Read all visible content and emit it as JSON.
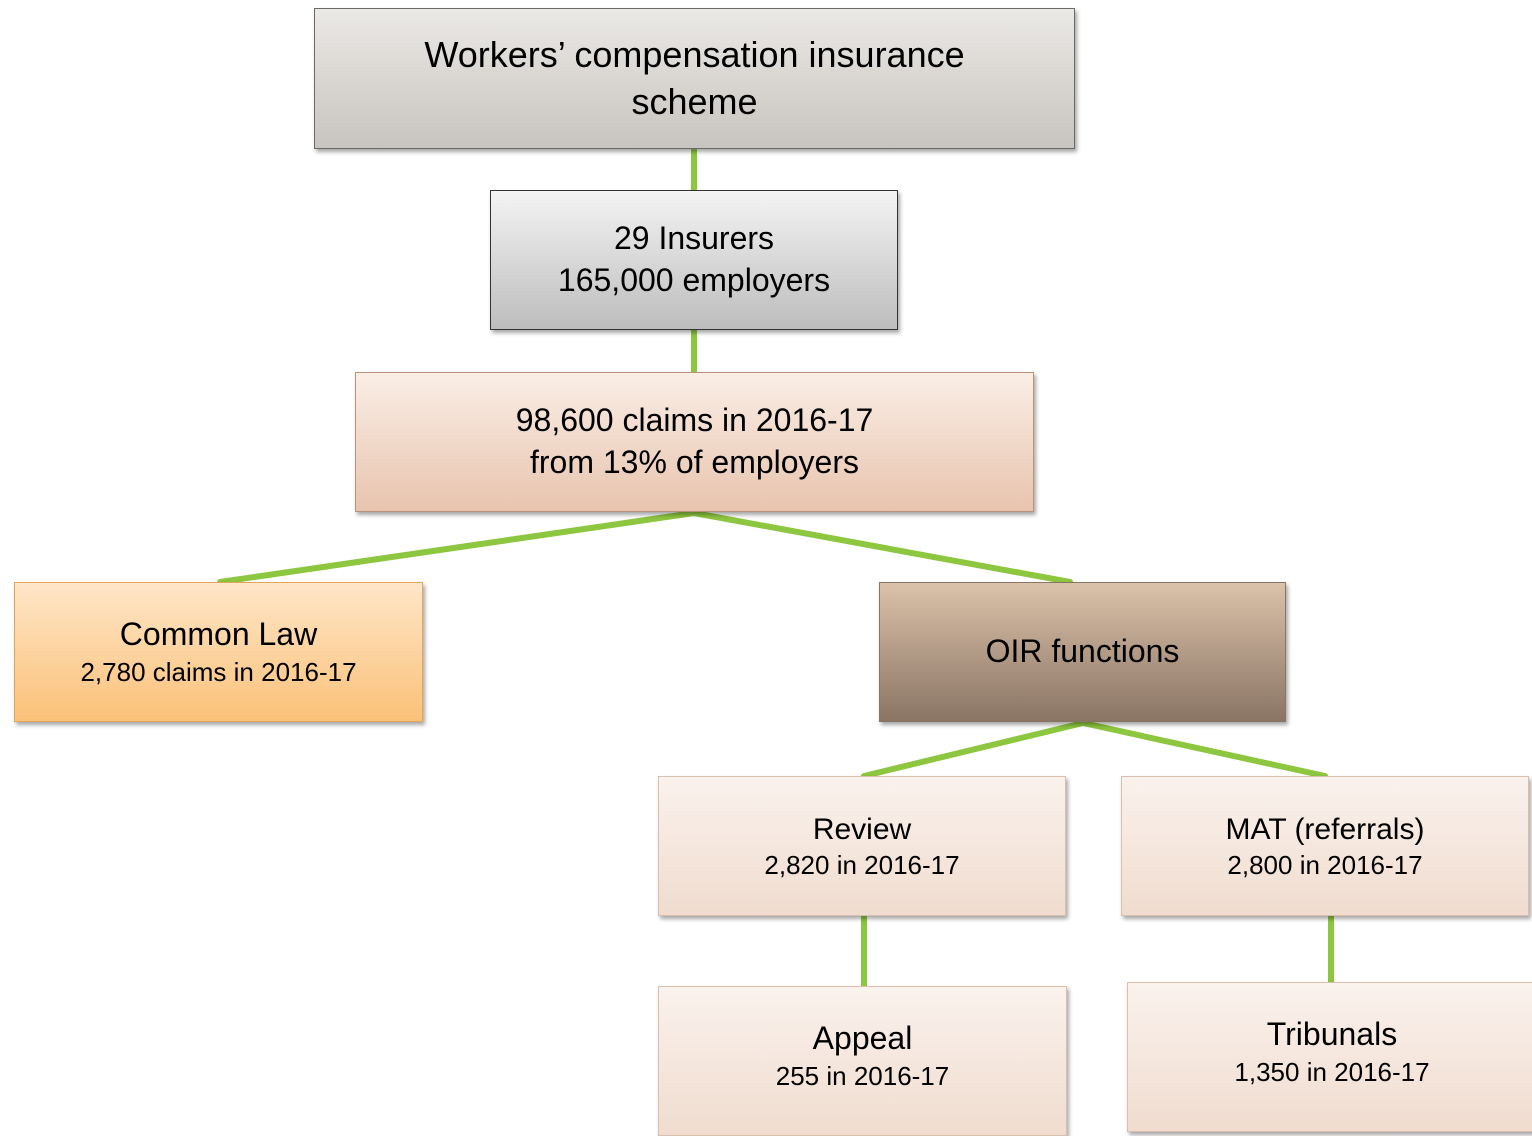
{
  "nodes": [
    {
      "lines": [
        "Workers’ compensation insurance",
        "scheme"
      ]
    },
    {
      "lines": [
        "29 Insurers",
        "165,000 employers"
      ]
    },
    {
      "lines": [
        "98,600 claims in 2016-17",
        "from 13% of employers"
      ]
    },
    {
      "lines": [
        "Common Law",
        "2,780 claims in 2016-17"
      ]
    },
    {
      "lines": [
        "OIR functions"
      ]
    },
    {
      "lines": [
        "Review",
        "2,820 in 2016-17"
      ]
    },
    {
      "lines": [
        "MAT (referrals)",
        "2,800 in 2016-17"
      ]
    },
    {
      "lines": [
        "Appeal",
        "255 in 2016-17"
      ]
    },
    {
      "lines": [
        "Tribunals",
        "1,350 in 2016-17"
      ]
    }
  ]
}
